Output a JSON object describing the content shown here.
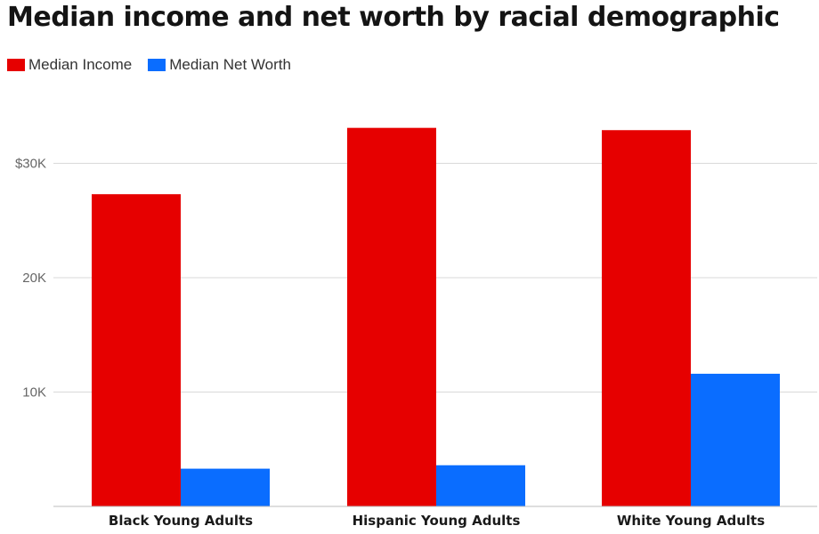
{
  "chart_data": {
    "type": "bar",
    "title": "Median income and net worth by racial demographic",
    "categories": [
      "Black Young Adults",
      "Hispanic Young Adults",
      "White Young Adults"
    ],
    "series": [
      {
        "name": "Median Income",
        "color": "#e60000",
        "values": [
          27300,
          33100,
          32900
        ]
      },
      {
        "name": "Median Net Worth",
        "color": "#0a6dff",
        "values": [
          3300,
          3600,
          11600
        ]
      }
    ],
    "y_ticks": [
      {
        "value": 10000,
        "label": "10K"
      },
      {
        "value": 20000,
        "label": "20K"
      },
      {
        "value": 30000,
        "label": "$30K"
      }
    ],
    "ylim": [
      0,
      37000
    ],
    "grid": true,
    "legend_position": "top-left"
  }
}
